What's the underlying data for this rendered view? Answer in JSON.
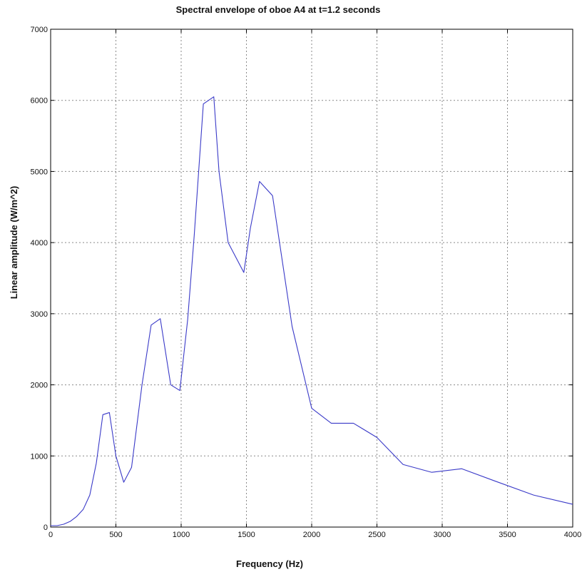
{
  "chart_data": {
    "type": "line",
    "title": "Spectral envelope of oboe A4 at t=1.2 seconds",
    "xlabel": "Frequency (Hz)",
    "ylabel": "Linear amplitude (W/m^2)",
    "xlim": [
      0,
      4000
    ],
    "ylim": [
      0,
      7000
    ],
    "xticks": [
      0,
      500,
      1000,
      1500,
      2000,
      2500,
      3000,
      3500,
      4000
    ],
    "yticks": [
      0,
      1000,
      2000,
      3000,
      4000,
      5000,
      6000,
      7000
    ],
    "grid": true,
    "series": [
      {
        "color": "#3a3ac8",
        "x": [
          0,
          50,
          100,
          150,
          200,
          250,
          300,
          350,
          400,
          450,
          500,
          560,
          620,
          700,
          770,
          840,
          920,
          990,
          1050,
          1100,
          1170,
          1250,
          1290,
          1360,
          1480,
          1530,
          1600,
          1700,
          1850,
          2000,
          2150,
          2320,
          2500,
          2700,
          2920,
          3150,
          3400,
          3700,
          4000
        ],
        "y": [
          20,
          20,
          40,
          80,
          150,
          250,
          450,
          900,
          1580,
          1610,
          1000,
          630,
          840,
          2000,
          2840,
          2930,
          2000,
          1920,
          2920,
          4100,
          5950,
          6050,
          5000,
          4000,
          3580,
          4200,
          4860,
          4660,
          2820,
          1670,
          1460,
          1460,
          1260,
          880,
          770,
          820,
          650,
          450,
          320
        ]
      }
    ]
  }
}
